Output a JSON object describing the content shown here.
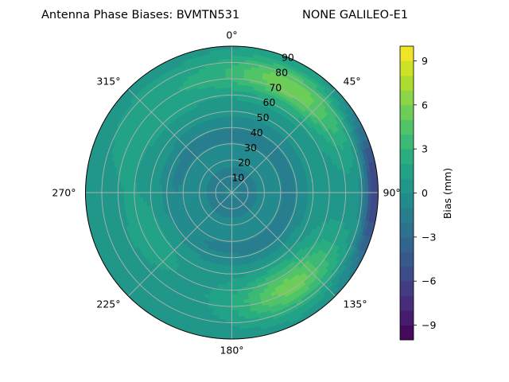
{
  "chart_data": {
    "type": "heatmap",
    "subtype": "polar-contour",
    "title_left": "Antenna Phase Biases: BVMTN531",
    "title_right": "NONE GALILEO-E1",
    "theta_ticks": [
      "0°",
      "45°",
      "90°",
      "135°",
      "180°",
      "225°",
      "270°",
      "315°"
    ],
    "theta_ticks_deg": [
      0,
      45,
      90,
      135,
      180,
      225,
      270,
      315
    ],
    "r_ticks": [
      "10",
      "20",
      "30",
      "40",
      "50",
      "60",
      "70",
      "80",
      "90"
    ],
    "r_range": [
      0,
      90
    ],
    "theta_direction": "clockwise",
    "theta_zero": "top",
    "grid": true,
    "colorbar": {
      "label": "Bias (mm)",
      "range": [
        -10,
        10
      ],
      "ticks": [
        "9",
        "6",
        "3",
        "0",
        "−3",
        "−6",
        "−9"
      ],
      "tick_values": [
        9,
        6,
        3,
        0,
        -3,
        -6,
        -9
      ],
      "colormap": "viridis"
    },
    "blobs": [
      {
        "az": 30,
        "r": 74,
        "value": 5.4,
        "spread_az": 35,
        "spread_r": 12
      },
      {
        "az": 148,
        "r": 68,
        "value": 5.2,
        "spread_az": 30,
        "spread_r": 14
      },
      {
        "az": 320,
        "r": 70,
        "value": 1.5,
        "spread_az": 40,
        "spread_r": 15
      },
      {
        "az": 240,
        "r": 55,
        "value": 1.0,
        "spread_az": 40,
        "spread_r": 20
      },
      {
        "az": 90,
        "r": 88,
        "value": -6.5,
        "spread_az": 30,
        "spread_r": 6
      }
    ],
    "ring_bias": [
      {
        "r": 35,
        "value": -1.5
      },
      {
        "r": 10,
        "value": -1.8
      }
    ]
  }
}
